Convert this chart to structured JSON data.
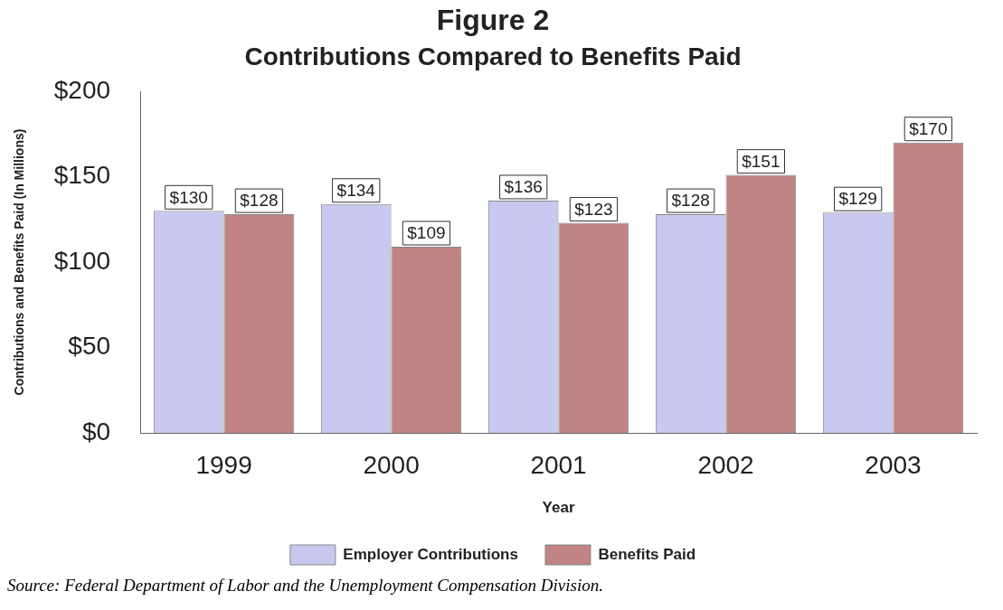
{
  "chart_data": {
    "type": "bar",
    "title": "Figure 2",
    "subtitle": "Contributions Compared to Benefits Paid",
    "xlabel": "Year",
    "ylabel": "Contributions and Benefits Paid (In Millions)",
    "categories": [
      "1999",
      "2000",
      "2001",
      "2002",
      "2003"
    ],
    "series": [
      {
        "name": "Employer Contributions",
        "color": "#c8c8f0",
        "values": [
          130,
          134,
          136,
          128,
          129
        ],
        "value_labels": [
          "$130",
          "$134",
          "$136",
          "$128",
          "$129"
        ]
      },
      {
        "name": "Benefits Paid",
        "color": "#c08484",
        "values": [
          128,
          109,
          123,
          151,
          170
        ],
        "value_labels": [
          "$128",
          "$109",
          "$123",
          "$151",
          "$170"
        ]
      }
    ],
    "ylim": [
      0,
      200
    ],
    "yticks": [
      {
        "value": 0,
        "label": "$0"
      },
      {
        "value": 50,
        "label": "$50"
      },
      {
        "value": 100,
        "label": "$100"
      },
      {
        "value": 150,
        "label": "$150"
      },
      {
        "value": 200,
        "label": "$200"
      }
    ],
    "legend": "bottom",
    "grid": false,
    "annotations": [
      "Source: Federal Department of Labor and the Unemployment Compensation Division."
    ]
  }
}
